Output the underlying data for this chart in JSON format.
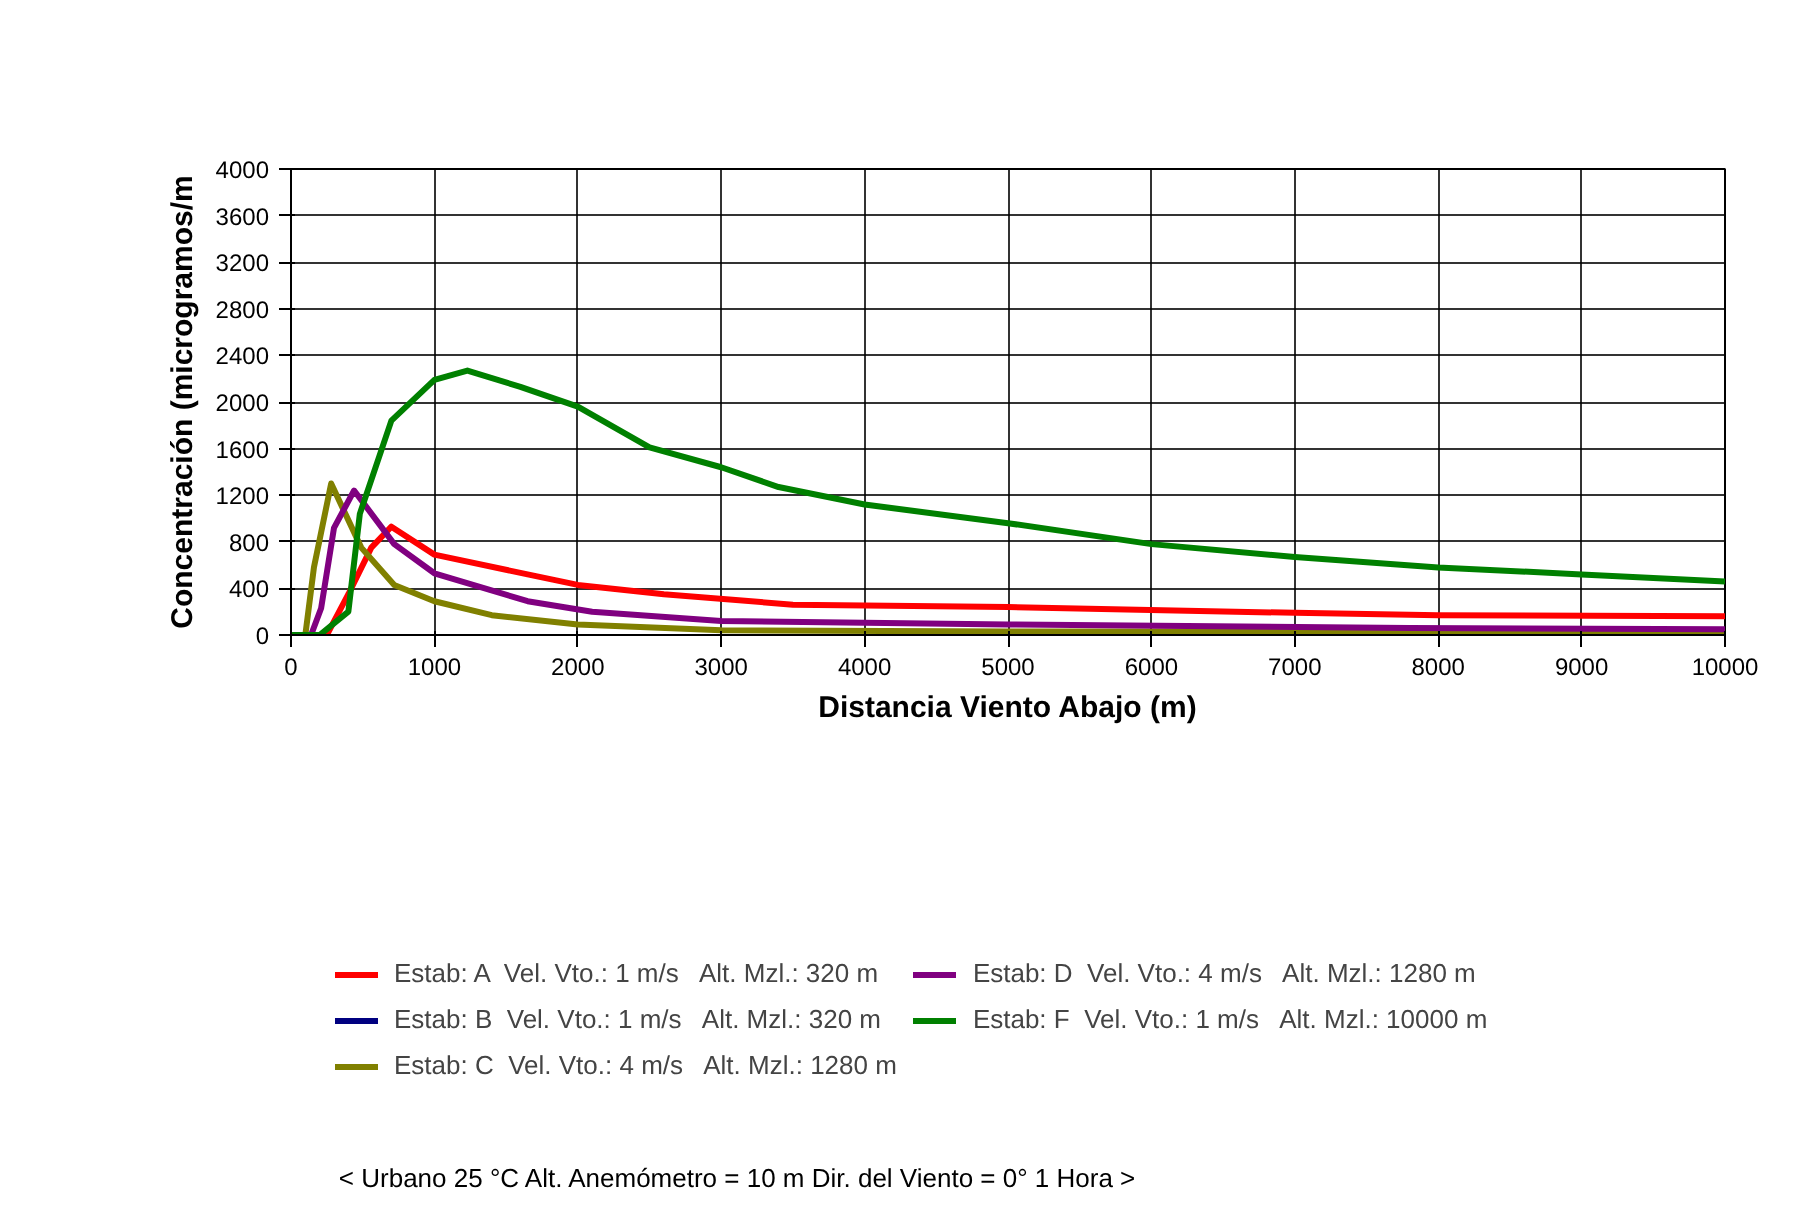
{
  "chart_data": {
    "type": "line",
    "xlabel": "Distancia Viento Abajo (m)",
    "ylabel": "Concentración (microgramos/m",
    "xlim": [
      0,
      10000
    ],
    "xticks": [
      0,
      1000,
      2000,
      3000,
      4000,
      5000,
      6000,
      7000,
      8000,
      9000,
      10000
    ],
    "ylim": [
      0,
      4000
    ],
    "yticks": [
      0,
      400,
      800,
      1200,
      1600,
      2000,
      2400,
      2800,
      3200,
      3600,
      4000
    ],
    "grid": true,
    "legend": "bottom",
    "line_style": "solid",
    "annotations": [
      "< Urbano   25 °C   Alt. Anemómetro =  10 m   Dir. del Viento =  0°   1 Hora >"
    ],
    "series": [
      {
        "name": "Estab: A  Vel. Vto.: 1 m/s   Alt. Mzl.: 320 m",
        "color": "#ff0000",
        "x": [
          0,
          250,
          400,
          560,
          700,
          1000,
          1650,
          2000,
          2600,
          3500,
          5000,
          7000,
          8000,
          10000
        ],
        "values": [
          0,
          0,
          350,
          750,
          930,
          690,
          520,
          430,
          350,
          260,
          240,
          190,
          170,
          160
        ]
      },
      {
        "name": "Estab: B  Vel. Vto.: 1 m/s   Alt. Mzl.: 320 m",
        "color": "#000080",
        "values": [
          null
        ]
      },
      {
        "name": "Estab: C  Vel. Vto.: 4 m/s   Alt. Mzl.: 1280 m",
        "color": "#808000",
        "x": [
          0,
          100,
          160,
          280,
          490,
          720,
          1000,
          1400,
          2000,
          3000,
          5000,
          10000
        ],
        "values": [
          0,
          0,
          580,
          1300,
          750,
          430,
          290,
          170,
          90,
          40,
          30,
          30
        ]
      },
      {
        "name": "Estab: D  Vel. Vto.: 4 m/s   Alt. Mzl.: 1280 m",
        "color": "#800080",
        "x": [
          0,
          140,
          210,
          300,
          440,
          720,
          1000,
          1650,
          2100,
          3000,
          5000,
          7800,
          10000
        ],
        "values": [
          0,
          0,
          230,
          920,
          1240,
          780,
          530,
          290,
          200,
          120,
          90,
          60,
          50
        ]
      },
      {
        "name": "Estab: F  Vel. Vto.: 1 m/s   Alt. Mzl.: 10000 m",
        "color": "#008000",
        "x": [
          0,
          200,
          400,
          480,
          700,
          1000,
          1230,
          1600,
          2000,
          2500,
          3000,
          3400,
          4000,
          5000,
          6000,
          7000,
          8000,
          9000,
          10000
        ],
        "values": [
          0,
          0,
          200,
          1040,
          1840,
          2190,
          2270,
          2130,
          1960,
          1610,
          1440,
          1270,
          1120,
          960,
          780,
          670,
          580,
          520,
          460
        ]
      }
    ]
  }
}
